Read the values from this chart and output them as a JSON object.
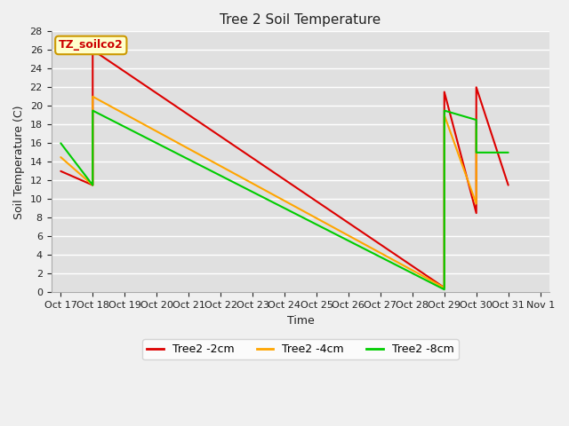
{
  "title": "Tree 2 Soil Temperature",
  "xlabel": "Time",
  "ylabel": "Soil Temperature (C)",
  "annotation": "TZ_soilco2",
  "ylim": [
    0,
    28
  ],
  "xlim": [
    -0.3,
    15.3
  ],
  "x_labels": [
    "Oct 17",
    "Oct 18",
    "Oct 19",
    "Oct 20",
    "Oct 21",
    "Oct 22",
    "Oct 23",
    "Oct 24",
    "Oct 25",
    "Oct 26",
    "Oct 27",
    "Oct 28",
    "Oct 29",
    "Oct 30",
    "Oct 31",
    "Nov 1"
  ],
  "series": [
    {
      "name": "Tree2 -2cm",
      "color": "#dd0000",
      "data_x": [
        0,
        1,
        1,
        12,
        12,
        13,
        13,
        14,
        14
      ],
      "data_y": [
        13,
        11.5,
        26,
        0.5,
        21.5,
        8.5,
        22,
        11.5,
        11.5
      ]
    },
    {
      "name": "Tree2 -4cm",
      "color": "#ffa500",
      "data_x": [
        0,
        1,
        1,
        12,
        12,
        13,
        13
      ],
      "data_y": [
        14.5,
        11.5,
        21,
        0.5,
        19,
        9.5,
        17.5
      ]
    },
    {
      "name": "Tree2 -8cm",
      "color": "#00cc00",
      "data_x": [
        0,
        1,
        1,
        12,
        12,
        13,
        13,
        14
      ],
      "data_y": [
        16,
        11.5,
        19.5,
        0.3,
        19.5,
        18.5,
        15,
        15
      ]
    }
  ],
  "yticks": [
    0,
    2,
    4,
    6,
    8,
    10,
    12,
    14,
    16,
    18,
    20,
    22,
    24,
    26,
    28
  ],
  "fig_facecolor": "#f0f0f0",
  "ax_facecolor": "#e0e0e0",
  "grid_color": "#ffffff",
  "title_fontsize": 11,
  "axis_label_fontsize": 9,
  "tick_fontsize": 8,
  "legend_fontsize": 9,
  "annot_fontsize": 9,
  "linewidth": 1.5
}
